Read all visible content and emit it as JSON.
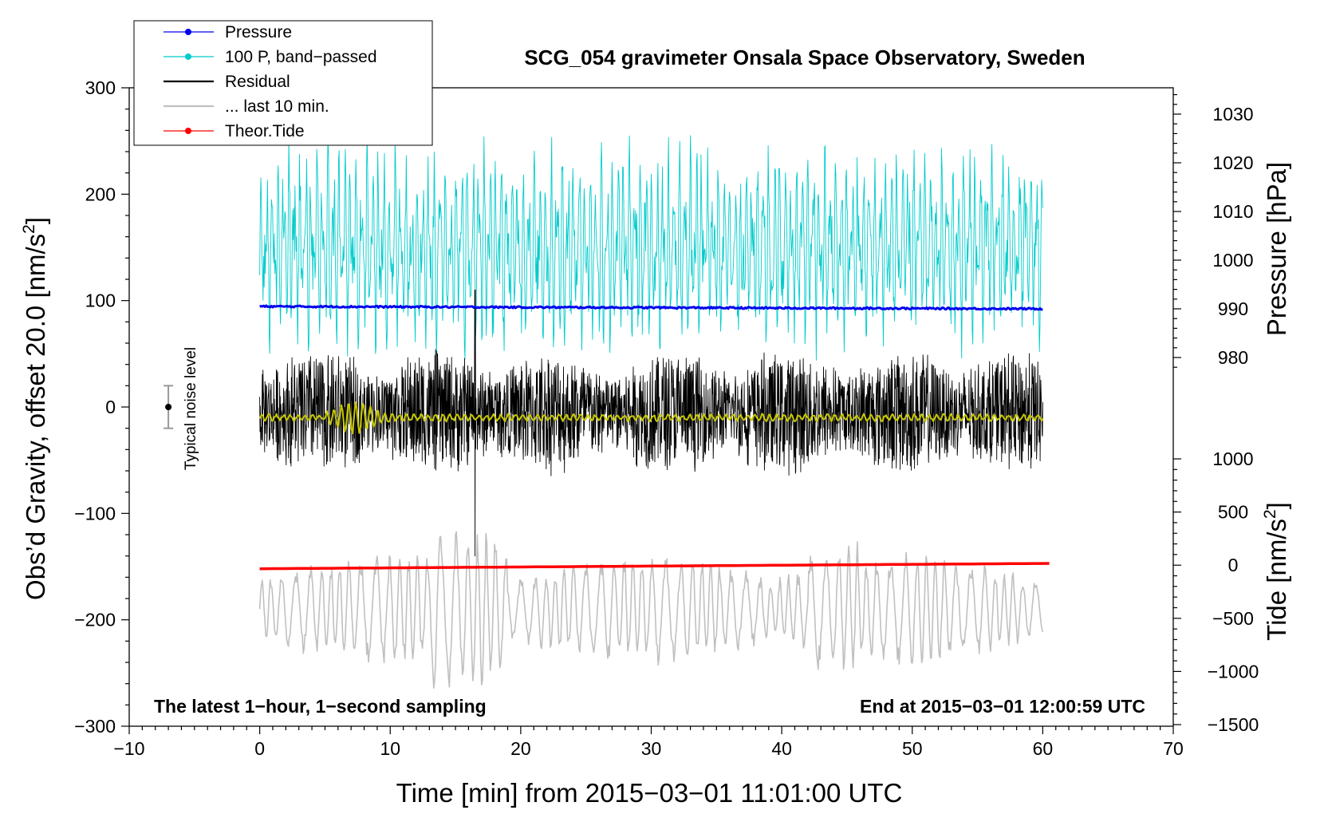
{
  "chart_data": {
    "type": "line",
    "title": "SCG_054 gravimeter Onsala Space Observatory, Sweden",
    "xlabel": "Time [min] from 2015−03−01 11:01:00 UTC",
    "ylabel_left": "Obs’d Gravity, offset 20.0 [nm/s",
    "ylabel_left_sup": "2",
    "ylabel_left_end": "]",
    "ylabel_right_top": "Pressure [hPa]",
    "ylabel_right_bottom": "Tide [nm/s",
    "ylabel_right_bottom_sup": "2",
    "ylabel_right_bottom_end": "]",
    "xlim": [
      -10,
      70
    ],
    "ylim": [
      -300,
      300
    ],
    "pressure_axis_range_hPa": [
      980,
      1030
    ],
    "tide_axis_range": [
      -1500,
      1000
    ],
    "x_ticks": [
      "−10",
      "0",
      "10",
      "20",
      "30",
      "40",
      "50",
      "60",
      "70"
    ],
    "x_tick_values": [
      -10,
      0,
      10,
      20,
      30,
      40,
      50,
      60,
      70
    ],
    "y_ticks": [
      "300",
      "200",
      "100",
      "0",
      "−100",
      "−200",
      "−300"
    ],
    "y_tick_values": [
      300,
      200,
      100,
      0,
      -100,
      -200,
      -300
    ],
    "pressure_ticks": [
      "1030",
      "1020",
      "1010",
      "1000",
      "990",
      "980"
    ],
    "pressure_tick_values": [
      1030,
      1020,
      1010,
      1000,
      990,
      980
    ],
    "tide_ticks": [
      "1000",
      "500",
      "0",
      "−500",
      "−1000",
      "−1500"
    ],
    "tide_tick_values": [
      1000,
      500,
      0,
      -500,
      -1000,
      -1500
    ],
    "note_left": "The latest 1−hour, 1−second sampling",
    "note_right": "End at 2015−03−01 12:00:59 UTC",
    "noise_label": "Typical noise level",
    "noise_bar": {
      "x_min": -7,
      "center": 0,
      "half_range": 20
    },
    "series": [
      {
        "name": "Pressure",
        "color": "#0000ee",
        "style": "line+dot",
        "x_range": [
          0,
          60
        ],
        "approx_start_hPa": 990.5,
        "approx_end_hPa": 990.0
      },
      {
        "name": "100 P, band−passed",
        "color": "#00cccc",
        "style": "line+dot",
        "x_range": [
          0,
          60
        ],
        "approx_center": 150,
        "approx_amplitude": 90
      },
      {
        "name": "Residual",
        "color": "#000000",
        "style": "line",
        "x_range": [
          0,
          60
        ],
        "approx_center": -5,
        "approx_amplitude": 45,
        "spike_at_min": 16.5,
        "spike_range": [
          -140,
          110
        ]
      },
      {
        "name": "... last 10 min.",
        "color": "#c0c0c0",
        "style": "line",
        "x_range": [
          0,
          60
        ],
        "approx_center": -190,
        "approx_amplitude": 50
      },
      {
        "name": "Theor.Tide",
        "color": "#ff0000",
        "style": "line+dot",
        "x_range": [
          0,
          60.5
        ],
        "approx_start": -152,
        "approx_end": -147
      },
      {
        "name": "smoothed residual",
        "color": "#c8c800",
        "style": "line",
        "x_range": [
          0,
          60
        ],
        "approx_center": -10
      }
    ]
  },
  "legend": {
    "items": [
      {
        "label": "Pressure",
        "color": "#0000ee",
        "marker": true
      },
      {
        "label": "100 P, band−passed",
        "color": "#00cccc",
        "marker": true
      },
      {
        "label": "Residual",
        "color": "#000000",
        "marker": false
      },
      {
        "label": "... last 10 min.",
        "color": "#c0c0c0",
        "marker": false
      },
      {
        "label": "Theor.Tide",
        "color": "#ff0000",
        "marker": true
      }
    ]
  }
}
